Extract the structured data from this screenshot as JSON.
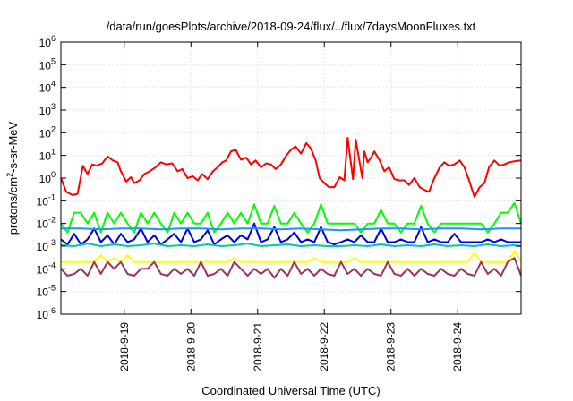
{
  "chart_data": {
    "type": "line",
    "title": "/data/run/goesPlots/archive/2018-09-24/flux/../flux/7daysMoonFluxes.txt",
    "xlabel": "Coordinated Universal Time (UTC)",
    "ylabel": "protons/cm2-s-sr-MeV",
    "ylabel_parts": {
      "pre": "protons/cm",
      "sup": "2",
      "post": "-s-sr-MeV"
    },
    "yscale": "log",
    "ylim": [
      1e-06,
      1000000.0
    ],
    "xlim": [
      0,
      6.9
    ],
    "grid": true,
    "legend": "none",
    "x_ticks": [
      {
        "x": 0.95,
        "label": "2018-9-19"
      },
      {
        "x": 1.95,
        "label": "2018-9-20"
      },
      {
        "x": 2.95,
        "label": "2018-9-21"
      },
      {
        "x": 3.95,
        "label": "2018-9-22"
      },
      {
        "x": 4.95,
        "label": "2018-9-23"
      },
      {
        "x": 5.95,
        "label": "2018-9-24"
      }
    ],
    "y_ticks": [
      {
        "value": 1e-06,
        "base": "10",
        "exp": "-6"
      },
      {
        "value": 1e-05,
        "base": "10",
        "exp": "-5"
      },
      {
        "value": 0.0001,
        "base": "10",
        "exp": "-4"
      },
      {
        "value": 0.001,
        "base": "10",
        "exp": "-3"
      },
      {
        "value": 0.01,
        "base": "10",
        "exp": "-2"
      },
      {
        "value": 0.1,
        "base": "10",
        "exp": "-1"
      },
      {
        "value": 1,
        "base": "10",
        "exp": "0"
      },
      {
        "value": 10.0,
        "base": "10",
        "exp": "1"
      },
      {
        "value": 100.0,
        "base": "10",
        "exp": "2"
      },
      {
        "value": 1000.0,
        "base": "10",
        "exp": "3"
      },
      {
        "value": 10000.0,
        "base": "10",
        "exp": "4"
      },
      {
        "value": 100000.0,
        "base": "10",
        "exp": "5"
      },
      {
        "value": 1000000.0,
        "base": "10",
        "exp": "6"
      }
    ],
    "series": [
      {
        "color": "#ff0000",
        "x": [
          0.0,
          0.08,
          0.17,
          0.25,
          0.33,
          0.4,
          0.47,
          0.53,
          0.62,
          0.7,
          0.78,
          0.85,
          0.9,
          0.98,
          1.05,
          1.1,
          1.18,
          1.25,
          1.33,
          1.42,
          1.5,
          1.58,
          1.67,
          1.75,
          1.82,
          1.9,
          1.98,
          2.05,
          2.12,
          2.2,
          2.28,
          2.35,
          2.42,
          2.48,
          2.55,
          2.62,
          2.7,
          2.78,
          2.85,
          2.92,
          3.0,
          3.08,
          3.15,
          3.22,
          3.3,
          3.38,
          3.45,
          3.52,
          3.6,
          3.68,
          3.75,
          3.82,
          3.88,
          3.95,
          4.02,
          4.1,
          4.18,
          4.25,
          4.3,
          4.38,
          4.42,
          4.48,
          4.52,
          4.55,
          4.6,
          4.65,
          4.7,
          4.78,
          4.85,
          4.92,
          5.0,
          5.08,
          5.15,
          5.22,
          5.3,
          5.38,
          5.45,
          5.52,
          5.6,
          5.68,
          5.75,
          5.82,
          5.9,
          5.98,
          6.05,
          6.12,
          6.2,
          6.28,
          6.35,
          6.42,
          6.5,
          6.58,
          6.65,
          6.72,
          6.8,
          6.9
        ],
        "values": [
          1.0,
          0.25,
          0.18,
          0.2,
          3.5,
          1.5,
          4.0,
          3.5,
          4.5,
          9.0,
          6.0,
          5.0,
          2.0,
          0.7,
          1.1,
          0.6,
          0.8,
          1.5,
          2.0,
          3.0,
          5.0,
          4.0,
          4.5,
          2.0,
          2.5,
          1.0,
          1.2,
          0.8,
          1.5,
          0.9,
          2.0,
          3.0,
          5.0,
          6.0,
          15.0,
          18.0,
          6.5,
          8.0,
          4.0,
          6.0,
          3.0,
          4.5,
          4.0,
          2.5,
          4.0,
          10.0,
          18.0,
          25.0,
          12.0,
          35.0,
          20.0,
          6.0,
          1.0,
          0.6,
          0.4,
          0.4,
          1.1,
          0.8,
          60.0,
          0.9,
          50.0,
          5.0,
          1.0,
          15.0,
          5.0,
          8.0,
          15.0,
          6.0,
          2.0,
          3.0,
          0.9,
          0.8,
          0.8,
          0.5,
          1.0,
          0.4,
          0.3,
          0.25,
          1.0,
          3.0,
          5.0,
          3.5,
          4.0,
          6.0,
          3.0,
          0.8,
          0.15,
          0.4,
          0.6,
          3.0,
          6.0,
          3.5,
          4.0,
          5.0,
          5.5,
          6.0
        ]
      },
      {
        "color": "#00ff00",
        "x": [
          0.0,
          0.1,
          0.2,
          0.3,
          0.4,
          0.5,
          0.6,
          0.7,
          0.8,
          0.9,
          1.0,
          1.1,
          1.2,
          1.3,
          1.4,
          1.5,
          1.6,
          1.7,
          1.8,
          1.9,
          2.0,
          2.1,
          2.2,
          2.3,
          2.4,
          2.5,
          2.6,
          2.7,
          2.8,
          2.9,
          3.0,
          3.1,
          3.2,
          3.3,
          3.4,
          3.5,
          3.6,
          3.7,
          3.8,
          3.9,
          4.0,
          4.1,
          4.2,
          4.3,
          4.4,
          4.5,
          4.6,
          4.7,
          4.8,
          4.9,
          5.0,
          5.1,
          5.2,
          5.3,
          5.4,
          5.5,
          5.6,
          5.7,
          5.8,
          5.9,
          6.0,
          6.1,
          6.2,
          6.3,
          6.4,
          6.5,
          6.6,
          6.7,
          6.8,
          6.9
        ],
        "values": [
          0.01,
          0.004,
          0.03,
          0.03,
          0.01,
          0.03,
          0.004,
          0.03,
          0.01,
          0.03,
          0.01,
          0.004,
          0.03,
          0.01,
          0.03,
          0.01,
          0.004,
          0.03,
          0.01,
          0.03,
          0.01,
          0.01,
          0.03,
          0.004,
          0.01,
          0.03,
          0.01,
          0.03,
          0.01,
          0.07,
          0.01,
          0.01,
          0.06,
          0.01,
          0.01,
          0.03,
          0.01,
          0.004,
          0.01,
          0.07,
          0.01,
          0.01,
          0.01,
          0.01,
          0.01,
          0.004,
          0.01,
          0.01,
          0.04,
          0.01,
          0.01,
          0.004,
          0.01,
          0.01,
          0.06,
          0.01,
          0.004,
          0.01,
          0.01,
          0.01,
          0.01,
          0.01,
          0.01,
          0.01,
          0.004,
          0.01,
          0.03,
          0.03,
          0.08,
          0.01
        ]
      },
      {
        "color": "#0000dd",
        "x": [
          0.0,
          0.1,
          0.2,
          0.3,
          0.4,
          0.5,
          0.6,
          0.7,
          0.8,
          0.9,
          1.0,
          1.1,
          1.2,
          1.3,
          1.4,
          1.5,
          1.6,
          1.7,
          1.8,
          1.9,
          2.0,
          2.1,
          2.2,
          2.3,
          2.4,
          2.5,
          2.6,
          2.7,
          2.8,
          2.9,
          3.0,
          3.1,
          3.2,
          3.3,
          3.4,
          3.5,
          3.6,
          3.7,
          3.8,
          3.9,
          4.0,
          4.1,
          4.2,
          4.3,
          4.4,
          4.5,
          4.6,
          4.7,
          4.8,
          4.9,
          5.0,
          5.1,
          5.2,
          5.3,
          5.4,
          5.5,
          5.6,
          5.7,
          5.8,
          5.9,
          6.0,
          6.1,
          6.2,
          6.3,
          6.4,
          6.5,
          6.6,
          6.7,
          6.8,
          6.9
        ],
        "values": [
          0.002,
          0.0012,
          0.0035,
          0.0012,
          0.002,
          0.006,
          0.0015,
          0.003,
          0.0012,
          0.0035,
          0.0015,
          0.002,
          0.006,
          0.0015,
          0.003,
          0.0012,
          0.002,
          0.0035,
          0.0015,
          0.006,
          0.0015,
          0.002,
          0.005,
          0.0012,
          0.002,
          0.003,
          0.0015,
          0.003,
          0.002,
          0.01,
          0.0015,
          0.002,
          0.007,
          0.0015,
          0.002,
          0.004,
          0.0015,
          0.002,
          0.0015,
          0.007,
          0.0015,
          0.0012,
          0.0015,
          0.002,
          0.0015,
          0.003,
          0.0015,
          0.0015,
          0.006,
          0.0015,
          0.0015,
          0.002,
          0.0015,
          0.0015,
          0.007,
          0.0015,
          0.002,
          0.0015,
          0.0015,
          0.0035,
          0.0015,
          0.0015,
          0.0015,
          0.0015,
          0.002,
          0.0015,
          0.002,
          0.0015,
          0.0015,
          0.0015
        ]
      },
      {
        "color": "#1e90ff",
        "x": [
          0.0,
          0.3,
          0.6,
          0.9,
          1.2,
          1.5,
          1.8,
          2.1,
          2.4,
          2.7,
          3.0,
          3.3,
          3.6,
          3.9,
          4.2,
          4.5,
          4.8,
          5.1,
          5.4,
          5.7,
          6.0,
          6.3,
          6.6,
          6.9
        ],
        "values": [
          0.006,
          0.006,
          0.0055,
          0.006,
          0.006,
          0.0055,
          0.006,
          0.006,
          0.0055,
          0.006,
          0.006,
          0.0055,
          0.006,
          0.0055,
          0.005,
          0.0055,
          0.006,
          0.006,
          0.0055,
          0.006,
          0.006,
          0.0055,
          0.006,
          0.006
        ]
      },
      {
        "color": "#00c8a0",
        "x": [
          0.0,
          0.2,
          0.4,
          0.6,
          0.8,
          1.0,
          1.2,
          1.4,
          1.6,
          1.8,
          2.0,
          2.2,
          2.4,
          2.6,
          2.8,
          3.0,
          3.2,
          3.4,
          3.6,
          3.8,
          4.0,
          4.2,
          4.4,
          4.6,
          4.8,
          5.0,
          5.2,
          5.4,
          5.6,
          5.8,
          6.0,
          6.2,
          6.4,
          6.6,
          6.8,
          6.9
        ],
        "values": [
          0.0011,
          0.001,
          0.0013,
          0.001,
          0.0012,
          0.001,
          0.0011,
          0.0013,
          0.001,
          0.0011,
          0.001,
          0.0012,
          0.001,
          0.0011,
          0.0013,
          0.001,
          0.0011,
          0.0012,
          0.001,
          0.0011,
          0.001,
          0.001,
          0.0011,
          0.001,
          0.0012,
          0.001,
          0.0011,
          0.001,
          0.0012,
          0.001,
          0.0011,
          0.001,
          0.0012,
          0.001,
          0.0011,
          0.001
        ]
      },
      {
        "color": "#ffff00",
        "x": [
          0.0,
          0.1,
          0.2,
          0.3,
          0.4,
          0.5,
          0.6,
          0.7,
          0.8,
          0.9,
          1.0,
          1.1,
          1.2,
          1.3,
          1.4,
          1.5,
          1.6,
          1.7,
          1.8,
          1.9,
          2.0,
          2.1,
          2.2,
          2.3,
          2.4,
          2.5,
          2.6,
          2.7,
          2.8,
          2.9,
          3.0,
          3.1,
          3.2,
          3.3,
          3.4,
          3.5,
          3.6,
          3.7,
          3.8,
          3.9,
          4.0,
          4.1,
          4.2,
          4.3,
          4.4,
          4.5,
          4.6,
          4.7,
          4.8,
          4.9,
          5.0,
          5.1,
          5.2,
          5.3,
          5.4,
          5.5,
          5.6,
          5.7,
          5.8,
          5.9,
          6.0,
          6.1,
          6.2,
          6.3,
          6.4,
          6.5,
          6.6,
          6.7,
          6.8,
          6.9
        ],
        "values": [
          0.0002,
          0.0002,
          0.0002,
          0.0002,
          0.0002,
          0.0002,
          0.0004,
          0.0002,
          0.0003,
          0.0002,
          0.0004,
          0.0002,
          0.0002,
          0.0002,
          0.0002,
          0.0002,
          0.0002,
          0.0002,
          0.0002,
          0.0002,
          0.0002,
          0.0002,
          0.0002,
          0.0002,
          0.0002,
          0.0002,
          0.0003,
          0.0002,
          0.0002,
          0.0002,
          0.0002,
          0.0002,
          0.0002,
          0.0002,
          0.0002,
          0.0002,
          0.0002,
          0.0002,
          0.0003,
          0.0002,
          0.0002,
          0.0002,
          0.0002,
          0.0002,
          0.0003,
          0.0002,
          0.0002,
          0.0002,
          0.0002,
          0.0002,
          0.0002,
          0.0002,
          0.0002,
          0.0002,
          0.0002,
          0.0002,
          0.0002,
          0.0002,
          0.0002,
          0.0002,
          0.0002,
          0.0002,
          0.0005,
          0.0002,
          0.0002,
          0.0002,
          0.0002,
          0.0002,
          0.0006,
          0.0002
        ]
      },
      {
        "color": "#993366",
        "x": [
          0.0,
          0.1,
          0.2,
          0.3,
          0.4,
          0.5,
          0.6,
          0.7,
          0.8,
          0.9,
          1.0,
          1.1,
          1.2,
          1.3,
          1.4,
          1.5,
          1.6,
          1.7,
          1.8,
          1.9,
          2.0,
          2.1,
          2.2,
          2.3,
          2.4,
          2.5,
          2.6,
          2.7,
          2.8,
          2.9,
          3.0,
          3.1,
          3.2,
          3.3,
          3.4,
          3.5,
          3.6,
          3.7,
          3.8,
          3.9,
          4.0,
          4.1,
          4.2,
          4.3,
          4.4,
          4.5,
          4.6,
          4.7,
          4.8,
          4.9,
          5.0,
          5.1,
          5.2,
          5.3,
          5.4,
          5.5,
          5.6,
          5.7,
          5.8,
          5.9,
          6.0,
          6.1,
          6.2,
          6.3,
          6.4,
          6.5,
          6.6,
          6.7,
          6.8,
          6.9
        ],
        "values": [
          0.0001,
          5e-05,
          6e-05,
          0.0001,
          5e-05,
          0.0002,
          6e-05,
          0.0002,
          0.0001,
          0.0002,
          6e-05,
          5e-05,
          0.0001,
          0.0001,
          0.0002,
          6e-05,
          5e-05,
          0.0001,
          6e-05,
          0.0001,
          5e-05,
          0.0002,
          5e-05,
          6e-05,
          0.0001,
          5e-05,
          0.0002,
          0.0001,
          5e-05,
          0.0001,
          6e-05,
          0.0001,
          4e-05,
          0.0001,
          5e-05,
          0.0002,
          6e-05,
          0.0001,
          5e-05,
          0.0001,
          6e-05,
          5e-05,
          0.0002,
          6e-05,
          0.0001,
          5e-05,
          0.0001,
          6e-05,
          5e-05,
          0.0002,
          6e-05,
          5e-05,
          0.0001,
          5e-05,
          0.0001,
          6e-05,
          5e-05,
          0.0001,
          6e-05,
          5e-05,
          0.0001,
          6e-05,
          5e-05,
          0.0002,
          6e-05,
          0.0001,
          5e-05,
          0.0002,
          0.0003,
          5e-05
        ]
      }
    ]
  }
}
